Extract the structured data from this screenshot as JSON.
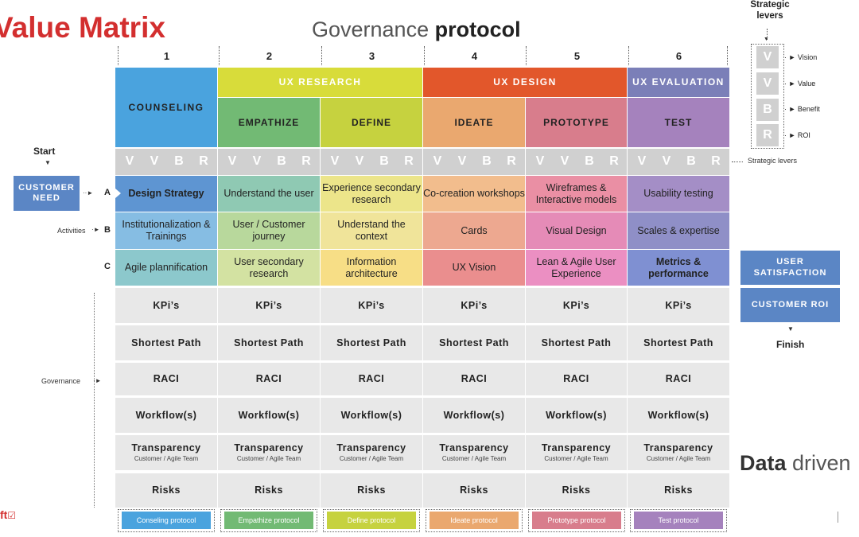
{
  "title": "Value Matrix",
  "subtitle_light": "Governance ",
  "subtitle_bold": "protocol",
  "columns": [
    "1",
    "2",
    "3",
    "4",
    "5",
    "6"
  ],
  "phases": {
    "counseling": "COUNSELING",
    "ux_research": "UX RESEARCH",
    "ux_design": "UX DESIGN",
    "ux_evaluation": "UX EVALUATION"
  },
  "subphases": [
    "EMPATHIZE",
    "DEFINE",
    "IDEATE",
    "PROTOTYPE",
    "TEST"
  ],
  "lever_letters": [
    "V",
    "V",
    "B",
    "R"
  ],
  "strategic_levers_label": "Strategic levers",
  "start_label": "Start",
  "finish_label": "Finish",
  "customer_need": "CUSTOMER NEED",
  "activities_label": "Activities",
  "governance_label": "Governance",
  "row_letters": [
    "A",
    "B",
    "C"
  ],
  "activities": [
    [
      "Design Strategy",
      "Understand the user",
      "Experience secondary research",
      "Co-creation workshops",
      "Wireframes & Interactive models",
      "Usability testing"
    ],
    [
      "Institutionalization & Trainings",
      "User / Customer journey",
      "Understand the context",
      "Cards",
      "Visual Design",
      "Scales & expertise"
    ],
    [
      "Agile plannification",
      "User secondary research",
      "Information architecture",
      "UX Vision",
      "Lean & Agile User Experience",
      "Metrics & performance"
    ]
  ],
  "governance_rows": [
    "KPi’s",
    "Shortest Path",
    "RACI",
    "Workflow(s)",
    "Transparency",
    "Risks"
  ],
  "transparency_sub": "Customer / Agile Team",
  "protocols": [
    "Conseling protocol",
    "Empathize protocol",
    "Define protocol",
    "Ideate protocol",
    "Prototype protocol",
    "Test protocol"
  ],
  "legend": {
    "title": "Strategic levers",
    "items": [
      {
        "letter": "V",
        "label": "Vision"
      },
      {
        "letter": "V",
        "label": "Value"
      },
      {
        "letter": "B",
        "label": "Benefit"
      },
      {
        "letter": "R",
        "label": "ROI"
      }
    ]
  },
  "user_satisfaction": "USER SATISFACTION",
  "customer_roi": "CUSTOMER ROI",
  "data_driven_bold": "Data",
  "data_driven_light": " driven",
  "logo_fragment": "ft",
  "colors": {
    "counseling": "#4aa3de",
    "ux_research": "#d8dc3a",
    "ux_design": "#e2572b",
    "ux_evaluation": "#7b7fb8",
    "empathize": "#72ba74",
    "define": "#c6d23f",
    "ideate": "#eaa86f",
    "prototype": "#d87d8c",
    "test": "#a582bd"
  }
}
